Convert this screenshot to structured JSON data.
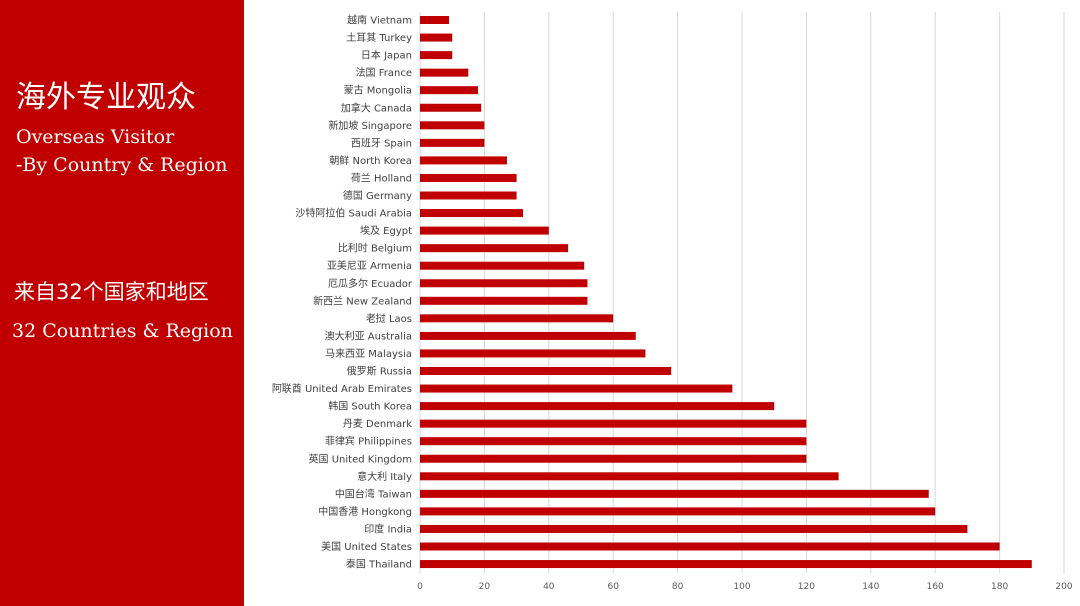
{
  "sidebar": {
    "title_cn": "海外专业观众",
    "title_en_line1": "Overseas Visitor",
    "title_en_line2": "-By Country & Region",
    "count_cn": "来自32个国家和地区",
    "count_en": "32 Countries & Region"
  },
  "colors": {
    "accent": "#c00000",
    "bar": "#c00000",
    "grid": "#d9d9d9"
  },
  "chart_data": {
    "type": "bar",
    "orientation": "horizontal",
    "categories": [
      "越南 Vietnam",
      "土耳其 Turkey",
      "日本 Japan",
      "法国 France",
      "蒙古 Mongolia",
      "加拿大 Canada",
      "新加坡 Singapore",
      "西班牙 Spain",
      "朝鲜 North Korea",
      "荷兰 Holland",
      "德国 Germany",
      "沙特阿拉伯 Saudi Arabia",
      "埃及 Egypt",
      "比利时 Belgium",
      "亚美尼亚 Armenia",
      "厄瓜多尔 Ecuador",
      "新西兰 New Zealand",
      "老挝 Laos",
      "澳大利亚 Australia",
      "马来西亚 Malaysia",
      "俄罗斯 Russia",
      "阿联酋 United Arab Emirates",
      "韩国 South Korea",
      "丹麦 Denmark",
      "菲律宾 Philippines",
      "英国 United Kingdom",
      "意大利 Italy",
      "中国台湾 Taiwan",
      "中国香港 Hongkong",
      "印度 India",
      "美国 United States",
      "泰国 Thailand"
    ],
    "values": [
      9,
      10,
      10,
      15,
      18,
      19,
      20,
      20,
      27,
      30,
      30,
      32,
      40,
      46,
      51,
      52,
      52,
      60,
      67,
      70,
      78,
      97,
      110,
      120,
      120,
      120,
      130,
      158,
      160,
      170,
      180,
      190
    ],
    "xlim": [
      0,
      200
    ],
    "xticks": [
      "0",
      "20",
      "40",
      "60",
      "80",
      "100",
      "120",
      "140",
      "160",
      "180",
      "200"
    ],
    "grid": true,
    "legend": "none"
  }
}
